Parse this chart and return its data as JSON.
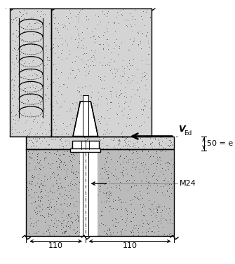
{
  "figsize": [
    3.35,
    3.77
  ],
  "dpi": 100,
  "bg_color": "#ffffff",
  "line_color": "#000000",
  "dim_50": "50 = e",
  "dim_110_left": "110",
  "dim_110_right": "110",
  "M24_label": "M24",
  "stipple_light_fc": "#d4d4d4",
  "stipple_dark_fc": "#bbbbbb",
  "dot_color_light": "#666666",
  "dot_color_dark": "#444444"
}
